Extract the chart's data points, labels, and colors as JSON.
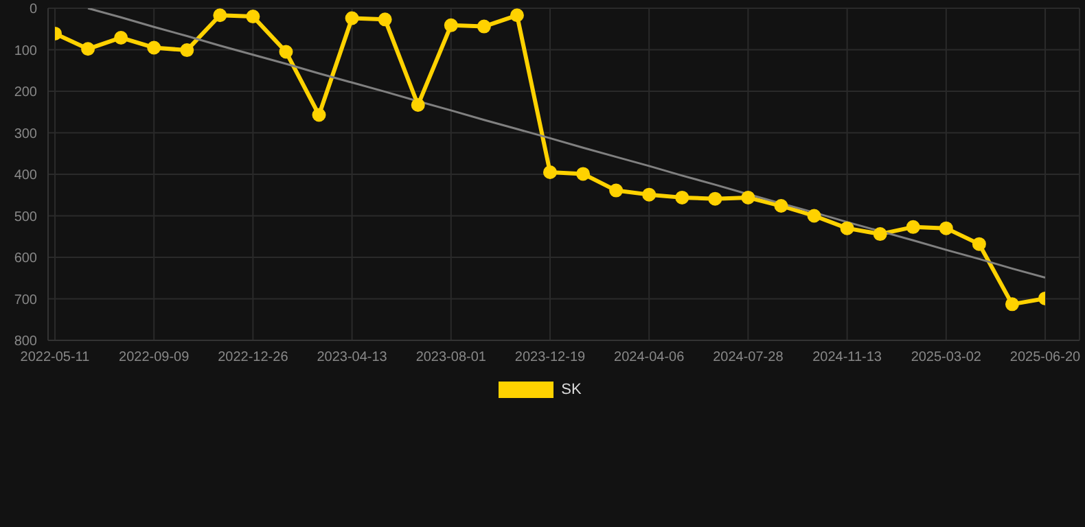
{
  "chart_data": {
    "type": "line",
    "categories": [
      "2022-05-11",
      null,
      null,
      "2022-09-09",
      null,
      null,
      "2022-12-26",
      null,
      null,
      "2023-04-13",
      null,
      null,
      "2023-08-01",
      null,
      null,
      "2023-12-19",
      null,
      null,
      "2024-04-06",
      null,
      null,
      "2024-07-28",
      null,
      null,
      "2024-11-13",
      null,
      null,
      "2025-03-02",
      null,
      null,
      "2025-06-20"
    ],
    "series": [
      {
        "name": "SK",
        "color": "#ffd200",
        "marker": "circle",
        "values": [
          61,
          98,
          71,
          95,
          101,
          17,
          20,
          105,
          257,
          24,
          27,
          233,
          41,
          44,
          17,
          395,
          399,
          439,
          449,
          456,
          459,
          456,
          476,
          500,
          530,
          544,
          527,
          530,
          568,
          713,
          699
        ]
      },
      {
        "type": "line",
        "color": "#808080",
        "marker": "none",
        "values": [
          null,
          0,
          22,
          45,
          67,
          90,
          112,
          134,
          157,
          179,
          201,
          224,
          246,
          269,
          291,
          313,
          336,
          358,
          380,
          403,
          425,
          448,
          470,
          492,
          515,
          537,
          559,
          582,
          604,
          627,
          649
        ]
      }
    ],
    "ylim": [
      800,
      0
    ],
    "yticks": [
      0,
      100,
      200,
      300,
      400,
      500,
      600,
      700,
      800
    ],
    "grid": true,
    "legend": "bottom",
    "line_style": "solid"
  }
}
